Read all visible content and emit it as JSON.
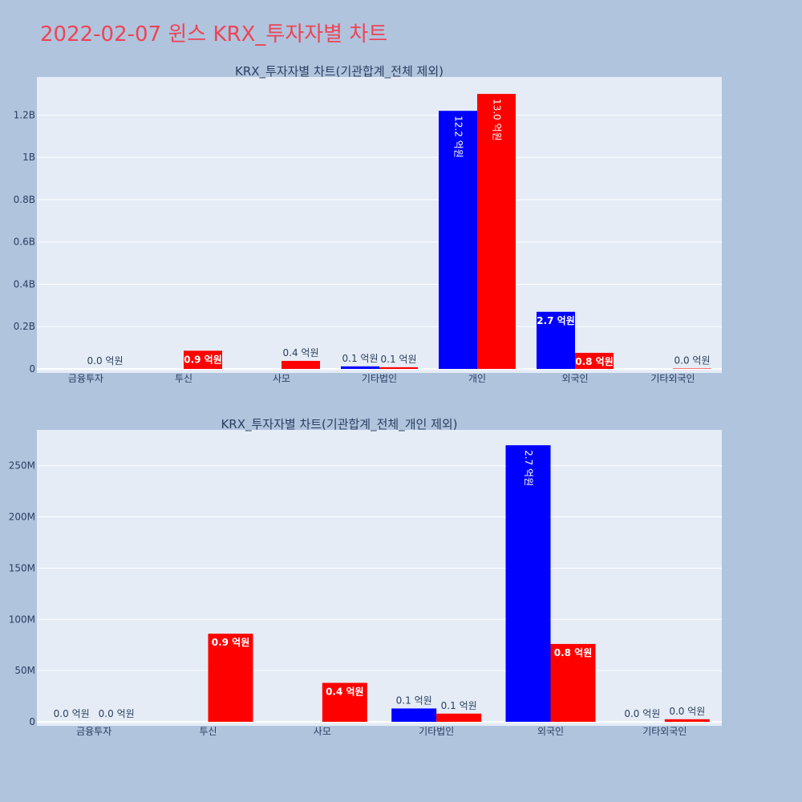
{
  "page": {
    "title": "2022-02-07 윈스 KRX_투자자별 차트"
  },
  "colors": {
    "background": "#b0c4de",
    "plot_bg": "#e5ecf6",
    "title": "#ee4455",
    "buy": "#0000ff",
    "sell": "#ff0000",
    "axis_text": "#2a3f5f"
  },
  "chart_data": [
    {
      "type": "bar",
      "title": "KRX_투자자별 차트(기관합계_전체 제외)",
      "categories": [
        "금융투자",
        "투신",
        "사모",
        "기타법인",
        "개인",
        "외국인",
        "기타외국인"
      ],
      "ylim": [
        0,
        1380000000
      ],
      "yticks": [
        0,
        200000000,
        400000000,
        600000000,
        800000000,
        1000000000,
        1200000000
      ],
      "ytick_labels": [
        "0",
        "0.2B",
        "0.4B",
        "0.6B",
        "0.8B",
        "1B",
        "1.2B"
      ],
      "grid": true,
      "series": [
        {
          "color": "#0000ff",
          "values": [
            0,
            0,
            0,
            12000000,
            1220000000,
            270000000,
            0
          ],
          "labels": [
            "",
            "",
            "",
            "0.1 억원",
            "12.2 억원",
            "2.7 억원",
            ""
          ]
        },
        {
          "color": "#ff0000",
          "values": [
            0,
            86000000,
            38000000,
            8000000,
            1300000000,
            76000000,
            2000000
          ],
          "labels": [
            "0.0 억원",
            "0.9 억원",
            "0.4 억원",
            "0.1 억원",
            "13.0 억원",
            "0.8 억원",
            "0.0 억원"
          ]
        }
      ]
    },
    {
      "type": "bar",
      "title": "KRX_투자자별 차트(기관합계_전체_개인 제외)",
      "categories": [
        "금융투자",
        "투신",
        "사모",
        "기타법인",
        "외국인",
        "기타외국인"
      ],
      "ylim": [
        0,
        285000000
      ],
      "yticks": [
        0,
        50000000,
        100000000,
        150000000,
        200000000,
        250000000
      ],
      "ytick_labels": [
        "0",
        "50M",
        "100M",
        "150M",
        "200M",
        "250M"
      ],
      "grid": true,
      "series": [
        {
          "color": "#0000ff",
          "values": [
            0,
            0,
            0,
            13000000,
            270000000,
            0
          ],
          "labels": [
            "0.0 억원",
            "",
            "",
            "0.1 억원",
            "2.7 억원",
            "0.0 억원"
          ]
        },
        {
          "color": "#ff0000",
          "values": [
            0,
            86000000,
            38000000,
            8000000,
            76000000,
            2500000
          ],
          "labels": [
            "0.0 억원",
            "0.9 억원",
            "0.4 억원",
            "0.1 억원",
            "0.8 억원",
            "0.0 억원"
          ]
        }
      ]
    }
  ]
}
